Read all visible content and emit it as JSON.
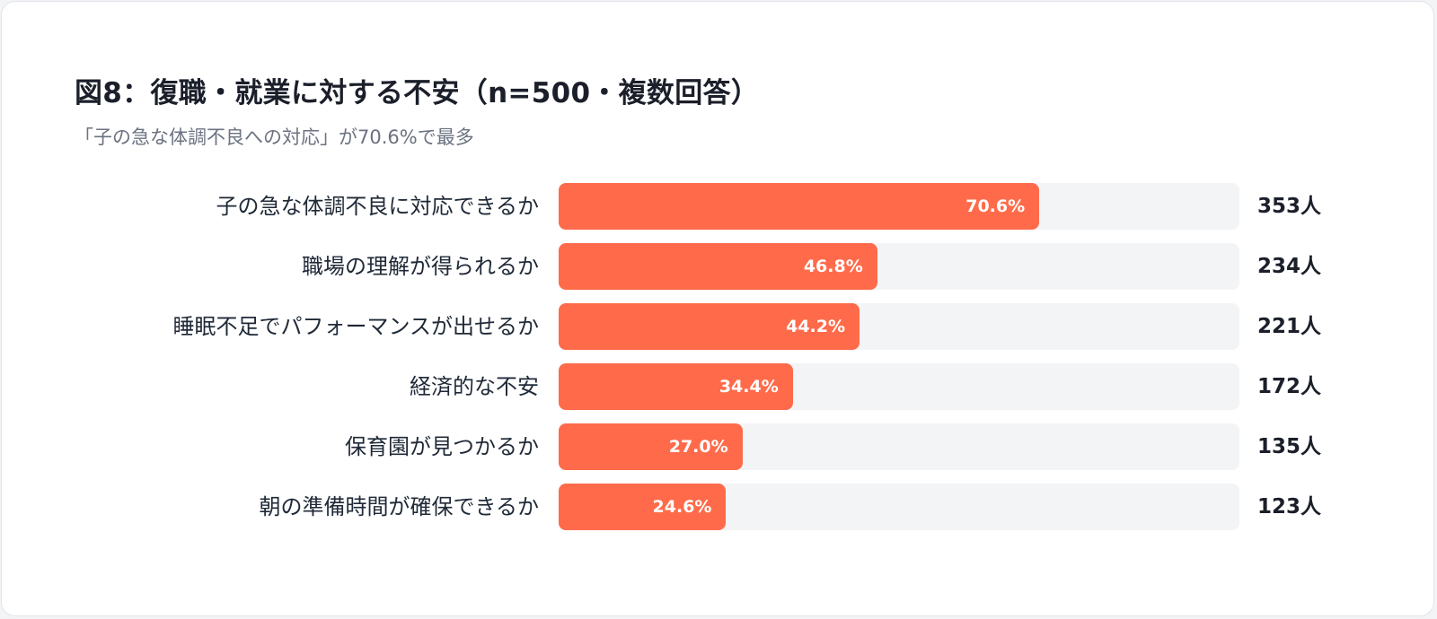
{
  "colors": {
    "bar": "#ff6b4a",
    "track": "#f3f4f6"
  },
  "chart_data": {
    "type": "bar",
    "orientation": "horizontal",
    "title": "図8：復職・就業に対する不安（n=500・複数回答）",
    "subtitle": "「子の急な体調不良への対応」が70.6%で最多",
    "categories": [
      "子の急な体調不良に対応できるか",
      "職場の理解が得られるか",
      "睡眠不足でパフォーマンスが出せるか",
      "経済的な不安",
      "保育園が見つかるか",
      "朝の準備時間が確保できるか"
    ],
    "values": [
      70.6,
      46.8,
      44.2,
      34.4,
      27.0,
      24.6
    ],
    "percent_labels": [
      "70.6%",
      "46.8%",
      "44.2%",
      "34.4%",
      "27.0%",
      "24.6%"
    ],
    "counts": [
      "353人",
      "234人",
      "221人",
      "172人",
      "135人",
      "123人"
    ],
    "xlim": [
      0,
      100
    ],
    "grid": false,
    "legend": "none"
  }
}
